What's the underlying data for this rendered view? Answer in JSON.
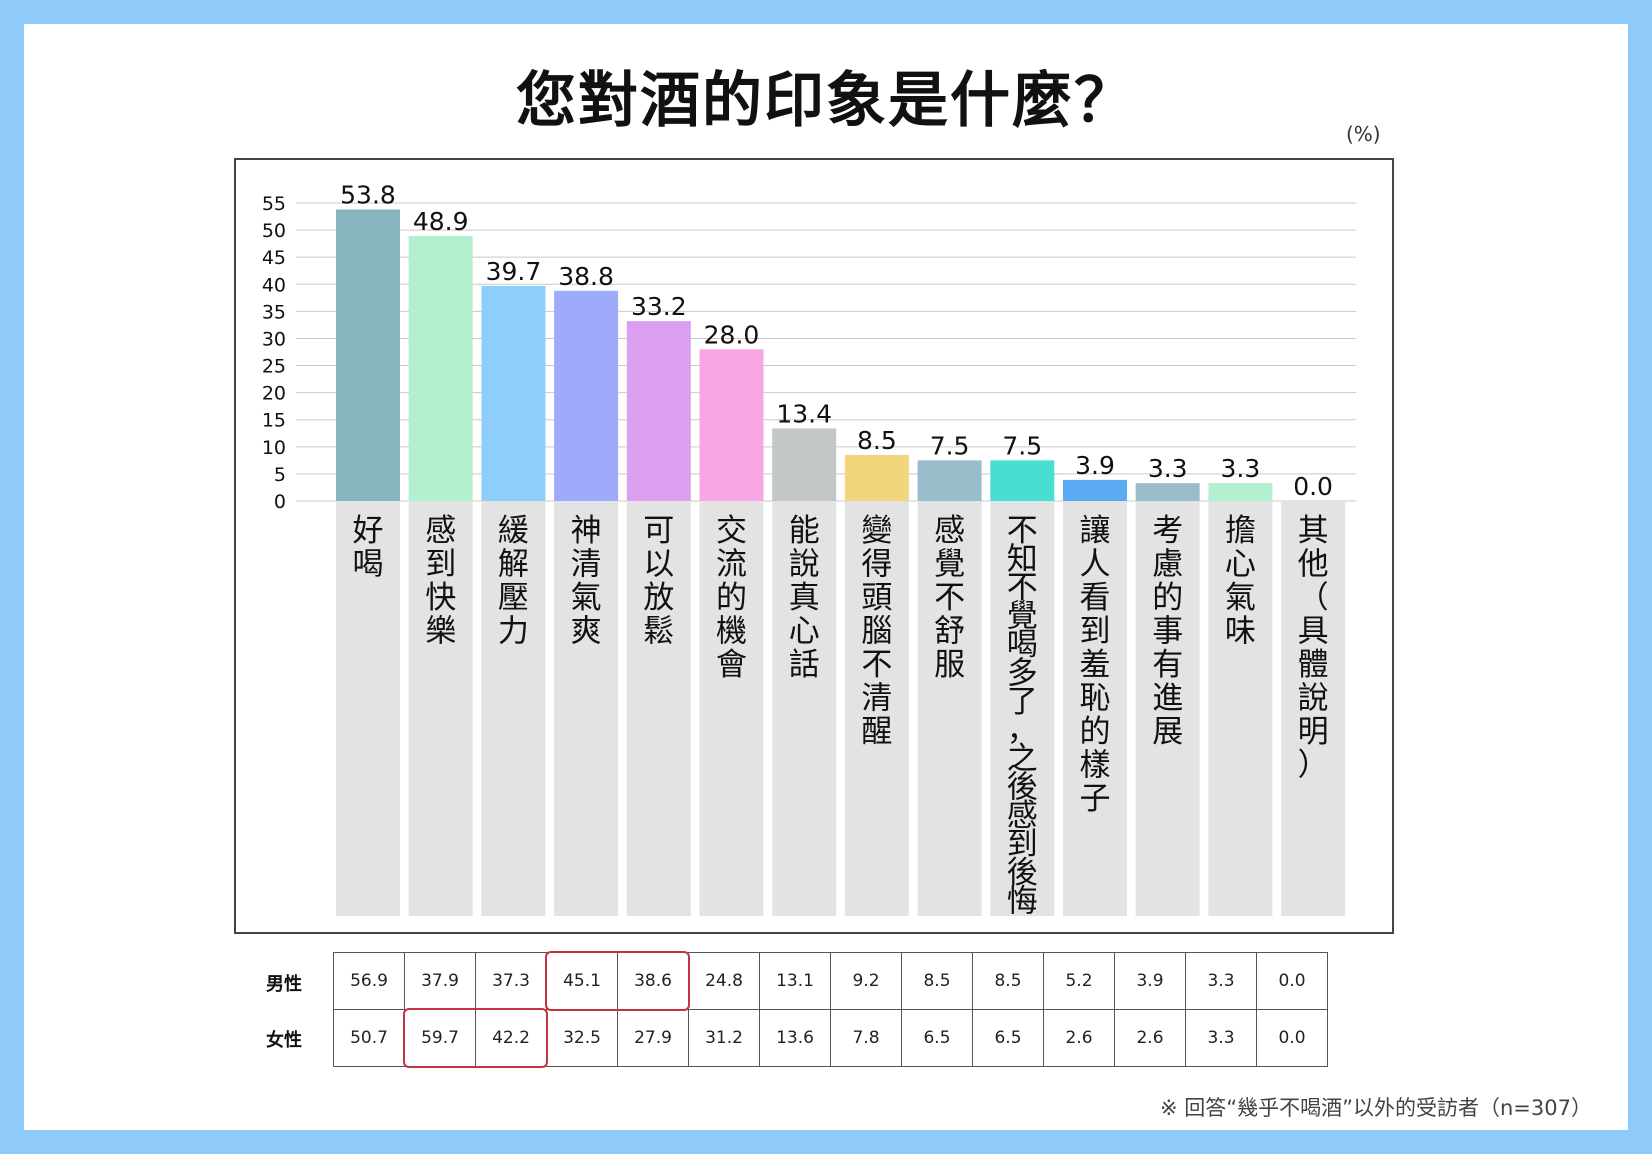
{
  "title": "您對酒的印象是什麼？",
  "unit": "(%)",
  "note": "※ 回答“幾乎不喝酒”以外的受訪者（n=307）",
  "chart_data": {
    "type": "bar",
    "title": "您對酒的印象是什麼？",
    "ylim": [
      0,
      55
    ],
    "yticks": [
      0,
      5,
      10,
      15,
      20,
      25,
      30,
      35,
      40,
      45,
      50,
      55
    ],
    "grid": true,
    "categories": [
      "好喝",
      "感到快樂",
      "緩解壓力",
      "神清氣爽",
      "可以放鬆",
      "交流的機會",
      "能說真心話",
      "變得頭腦不清醒",
      "感覺不舒服",
      "不知不覺喝多了，之後感到後悔",
      "讓人看到羞恥的樣子",
      "考慮的事有進展",
      "擔心氣味",
      "其他（具體說明）"
    ],
    "values": [
      53.8,
      48.9,
      39.7,
      38.8,
      33.2,
      28.0,
      13.4,
      8.5,
      7.5,
      7.5,
      3.9,
      3.3,
      3.3,
      0.0
    ],
    "value_labels": [
      "53.8",
      "48.9",
      "39.7",
      "38.8",
      "33.2",
      "28.0",
      "13.4",
      "8.5",
      "7.5",
      "7.5",
      "3.9",
      "3.3",
      "3.3",
      "0.0"
    ],
    "colors": [
      "#86b5bf",
      "#b3f0cd",
      "#8fcdfb",
      "#9dabfa",
      "#dc9ff0",
      "#f7a8e4",
      "#c3c8c6",
      "#f3d57d",
      "#98bcca",
      "#49ded2",
      "#5aabf1",
      "#98bcca",
      "#b3f0cd",
      "#ffffff"
    ],
    "label_band_color": "#e3e3e3",
    "table": {
      "rows": [
        {
          "label": "男性",
          "values": [
            "56.9",
            "37.9",
            "37.3",
            "45.1",
            "38.6",
            "24.8",
            "13.1",
            "9.2",
            "8.5",
            "8.5",
            "5.2",
            "3.9",
            "3.3",
            "0.0"
          ]
        },
        {
          "label": "女性",
          "values": [
            "50.7",
            "59.7",
            "42.2",
            "32.5",
            "27.9",
            "31.2",
            "13.6",
            "7.8",
            "6.5",
            "6.5",
            "2.6",
            "2.6",
            "3.3",
            "0.0"
          ]
        }
      ],
      "highlight_color": "#c2343f",
      "highlights": [
        {
          "row": 0,
          "cols": [
            3,
            4
          ]
        },
        {
          "row": 1,
          "cols": [
            1,
            2
          ]
        }
      ]
    }
  }
}
